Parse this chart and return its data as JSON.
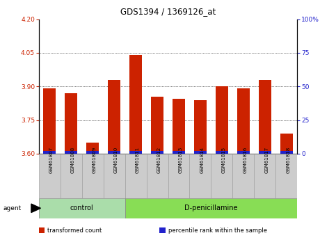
{
  "title": "GDS1394 / 1369126_at",
  "samples": [
    "GSM61807",
    "GSM61808",
    "GSM61809",
    "GSM61810",
    "GSM61811",
    "GSM61812",
    "GSM61813",
    "GSM61814",
    "GSM61815",
    "GSM61816",
    "GSM61817",
    "GSM61818"
  ],
  "transformed_counts": [
    3.89,
    3.87,
    3.65,
    3.93,
    4.04,
    3.855,
    3.845,
    3.84,
    3.9,
    3.89,
    3.93,
    3.69
  ],
  "percentile_ranks_pct": [
    2,
    2,
    2,
    2,
    2,
    2,
    2,
    2,
    2,
    2,
    2,
    2
  ],
  "ylim_left": [
    3.6,
    4.2
  ],
  "ylim_right": [
    0,
    100
  ],
  "yticks_left": [
    3.6,
    3.75,
    3.9,
    4.05,
    4.2
  ],
  "yticks_right": [
    0,
    25,
    50,
    75,
    100
  ],
  "bar_color_red": "#cc2200",
  "bar_color_blue": "#2222cc",
  "bar_width": 0.6,
  "groups": [
    {
      "label": "control",
      "indices": [
        0,
        1,
        2,
        3
      ],
      "color": "#aaddaa"
    },
    {
      "label": "D-penicillamine",
      "indices": [
        4,
        5,
        6,
        7,
        8,
        9,
        10,
        11
      ],
      "color": "#88dd55"
    }
  ],
  "agent_label": "agent",
  "legend_items": [
    {
      "label": "transformed count",
      "color": "#cc2200"
    },
    {
      "label": "percentile rank within the sample",
      "color": "#2222cc"
    }
  ],
  "grid_yticks": [
    3.75,
    3.9,
    4.05
  ],
  "background_color": "#ffffff",
  "tick_label_color_left": "#cc2200",
  "tick_label_color_right": "#2222cc",
  "sample_box_color": "#cccccc",
  "title_fontsize": 8.5,
  "tick_fontsize": 6.5,
  "sample_fontsize": 5.0,
  "group_fontsize": 7.0,
  "legend_fontsize": 6.0,
  "agent_fontsize": 6.5
}
